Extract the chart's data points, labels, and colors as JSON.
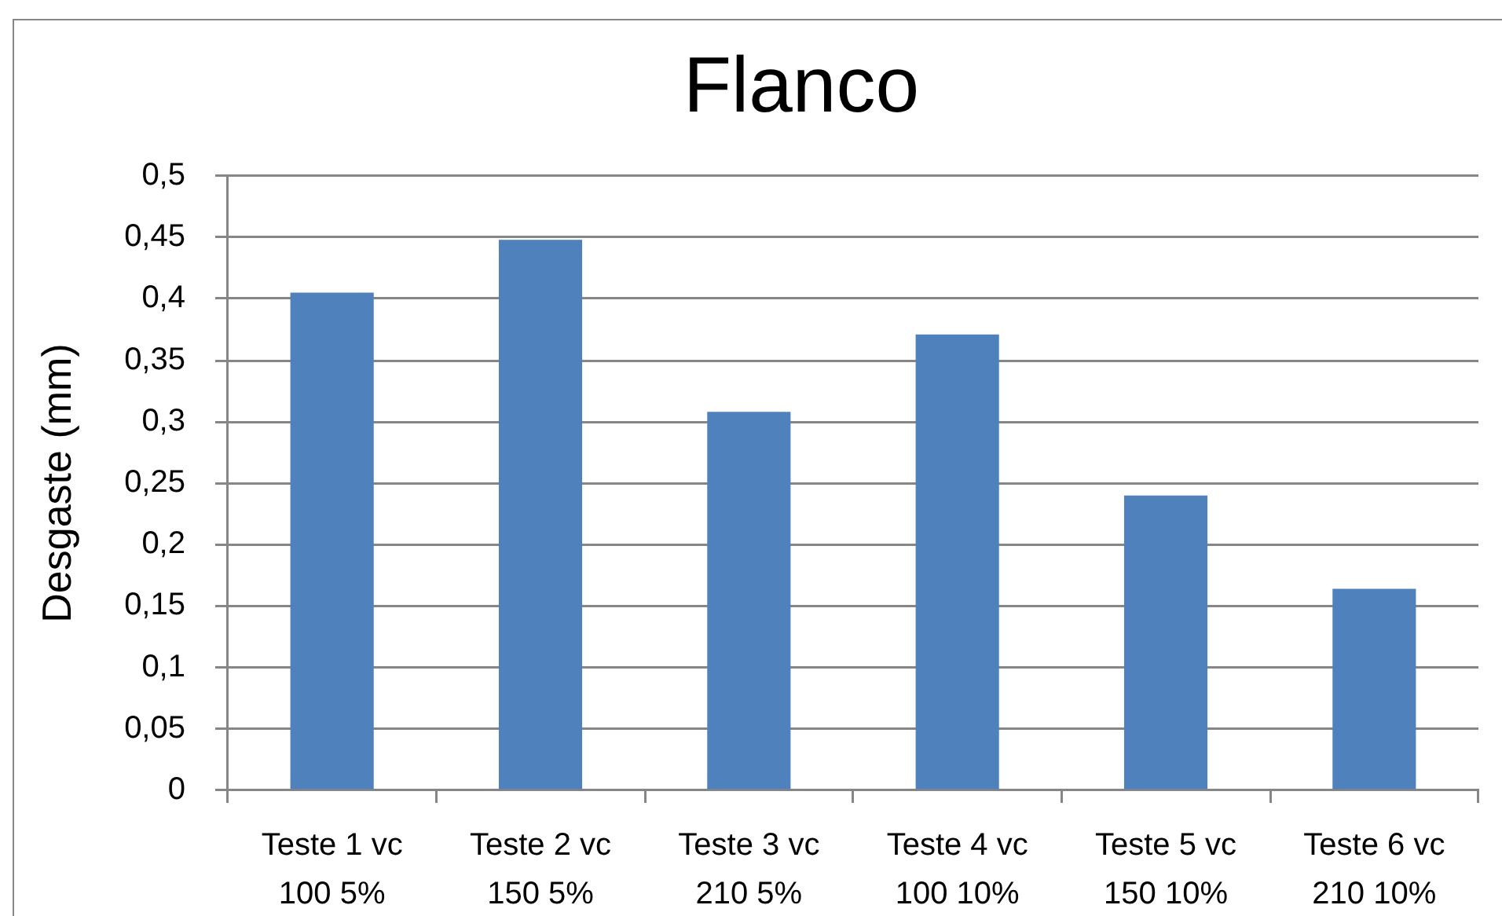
{
  "chart_data": {
    "type": "bar",
    "title": "Flanco",
    "ylabel": "Desgaste (mm)",
    "categories": [
      "Teste 1 vc 100 5%",
      "Teste 2 vc 150 5%",
      "Teste 3 vc 210 5%",
      "Teste 4 vc 100 10%",
      "Teste 5 vc 150 10%",
      "Teste 6 vc 210 10%"
    ],
    "values": [
      0.405,
      0.448,
      0.308,
      0.371,
      0.24,
      0.164
    ],
    "color": "#4f81bd",
    "ylim": [
      0,
      0.5
    ],
    "yticks": [
      0,
      {
        "value": 0.05,
        "label": "0,05"
      },
      {
        "value": 0.1,
        "label": "0,1"
      },
      {
        "value": 0.15,
        "label": "0,15"
      },
      {
        "value": 0.2,
        "label": "0,2"
      },
      {
        "value": 0.25,
        "label": "0,25"
      },
      {
        "value": 0.3,
        "label": "0,3"
      },
      {
        "value": 0.35,
        "label": "0,35"
      },
      {
        "value": 0.4,
        "label": "0,4"
      },
      {
        "value": 0.45,
        "label": "0,45"
      },
      {
        "value": 0.5,
        "label": "0,5"
      }
    ],
    "grid": "y"
  }
}
